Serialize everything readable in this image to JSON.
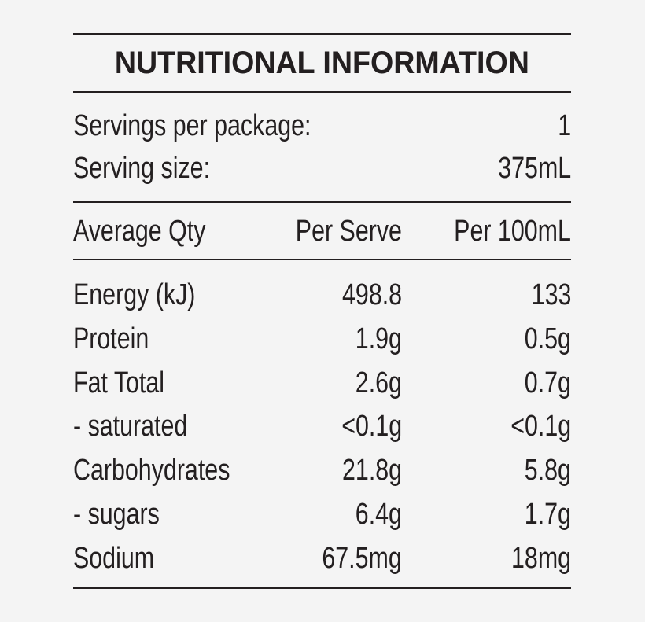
{
  "header": {
    "title": "NUTRITIONAL INFORMATION"
  },
  "servings": [
    [
      "Servings per package:",
      "1"
    ],
    [
      "Serving size:",
      "375mL"
    ]
  ],
  "table": {
    "columns": [
      "Average Qty",
      "Per Serve",
      "Per 100mL"
    ],
    "rows": [
      [
        "Energy (kJ)",
        "498.8",
        "133"
      ],
      [
        "Protein",
        "1.9g",
        "0.5g"
      ],
      [
        "Fat Total",
        "2.6g",
        "0.7g"
      ],
      [
        "- saturated",
        "<0.1g",
        "<0.1g"
      ],
      [
        "Carbohydrates",
        "21.8g",
        "5.8g"
      ],
      [
        "- sugars",
        "6.4g",
        "1.7g"
      ],
      [
        "Sodium",
        "67.5mg",
        "18mg"
      ]
    ]
  }
}
